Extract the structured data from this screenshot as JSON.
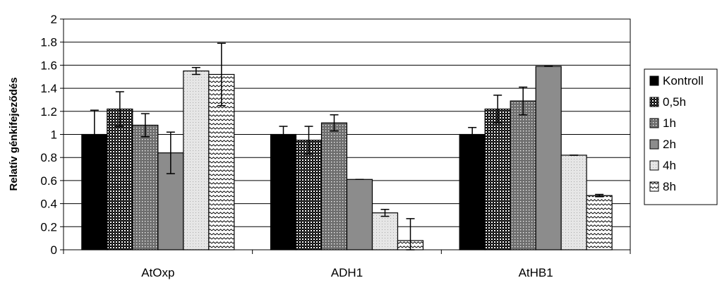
{
  "chart_data": {
    "type": "bar",
    "title": "",
    "xlabel": "",
    "ylabel": "Relatív génkifejeződés",
    "ylim": [
      0,
      2
    ],
    "yticks": [
      "0",
      "0.2",
      "0.4",
      "0.6",
      "0.8",
      "1",
      "1.2",
      "1.4",
      "1.6",
      "1.8",
      "2"
    ],
    "grid": true,
    "legend_position": "right",
    "categories": [
      "AtOxp",
      "ADH1",
      "AtHB1"
    ],
    "series": [
      {
        "name": "Kontroll",
        "pattern": "solid-black",
        "values": [
          1.0,
          1.0,
          1.0
        ],
        "errors": [
          0.21,
          0.07,
          0.06
        ]
      },
      {
        "name": "0,5h",
        "pattern": "dark-checker",
        "values": [
          1.22,
          0.95,
          1.22
        ],
        "errors": [
          0.15,
          0.12,
          0.12
        ]
      },
      {
        "name": "1h",
        "pattern": "dotted-gray",
        "values": [
          1.08,
          1.1,
          1.29
        ],
        "errors": [
          0.1,
          0.07,
          0.12
        ]
      },
      {
        "name": "2h",
        "pattern": "solid-gray",
        "values": [
          0.84,
          0.61,
          1.59
        ],
        "errors": [
          0.18,
          0.0,
          0.0
        ]
      },
      {
        "name": "4h",
        "pattern": "light-dotted",
        "values": [
          1.55,
          0.32,
          0.82
        ],
        "errors": [
          0.03,
          0.03,
          0.0
        ]
      },
      {
        "name": "8h",
        "pattern": "zigzag",
        "values": [
          1.52,
          0.08,
          0.47
        ],
        "errors": [
          0.27,
          0.19,
          0.01
        ]
      }
    ],
    "colors": {
      "black": "#000000",
      "gray": "#8c8c8c",
      "light": "#dcdcdc",
      "grid": "#000000"
    }
  }
}
